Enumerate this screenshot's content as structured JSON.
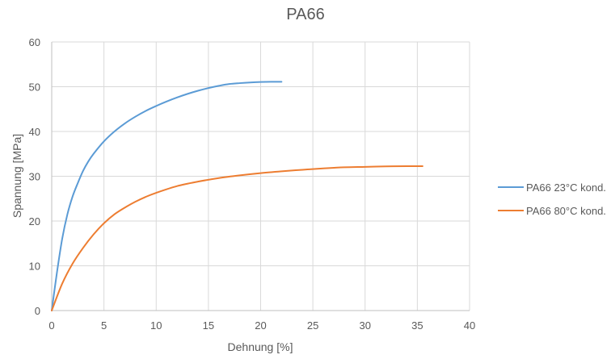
{
  "chart_data": {
    "type": "line",
    "title": "PA66",
    "xlabel": "Dehnung [%]",
    "ylabel": "Spannung [MPa]",
    "xlim": [
      0,
      40
    ],
    "ylim": [
      0,
      60
    ],
    "xticks": [
      0,
      5,
      10,
      15,
      20,
      25,
      30,
      35,
      40
    ],
    "yticks": [
      0,
      10,
      20,
      30,
      40,
      50,
      60
    ],
    "grid": true,
    "legend": "right",
    "series": [
      {
        "name": "PA66 23°C kond.",
        "color": "#5b9bd5",
        "x": [
          0,
          0.5,
          1,
          1.5,
          2,
          2.5,
          3,
          3.5,
          4,
          5,
          6,
          7,
          8,
          9,
          10,
          11,
          12,
          13,
          14,
          15,
          16,
          17,
          18,
          19,
          20,
          21,
          22
        ],
        "y": [
          0,
          8.5,
          16,
          21.5,
          25.5,
          28.5,
          31.2,
          33.3,
          35,
          37.8,
          40,
          41.8,
          43.3,
          44.6,
          45.7,
          46.7,
          47.6,
          48.4,
          49.1,
          49.7,
          50.2,
          50.6,
          50.8,
          50.95,
          51.05,
          51.1,
          51.1
        ]
      },
      {
        "name": "PA66 80°C kond.",
        "color": "#ed7d31",
        "x": [
          0,
          1,
          2,
          3,
          4,
          5,
          6,
          7,
          8,
          9,
          10,
          12,
          14,
          16,
          18,
          20,
          22,
          24,
          26,
          28,
          30,
          32,
          34,
          35.5
        ],
        "y": [
          0,
          6,
          10.5,
          14,
          17,
          19.5,
          21.5,
          23,
          24.3,
          25.4,
          26.3,
          27.8,
          28.8,
          29.6,
          30.2,
          30.7,
          31.1,
          31.45,
          31.75,
          32,
          32.1,
          32.2,
          32.25,
          32.25
        ]
      }
    ]
  }
}
